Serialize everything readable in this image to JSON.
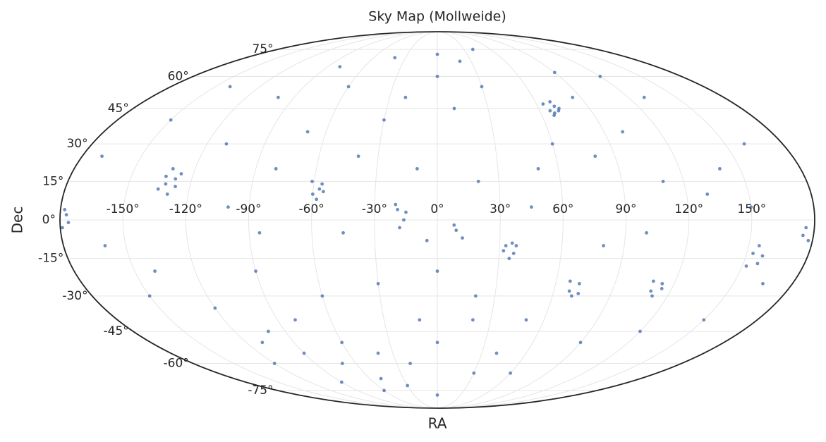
{
  "chart_data": {
    "type": "scatter",
    "projection": "mollweide",
    "title": "Sky Map (Mollweide)",
    "x_label": "RA",
    "y_label": "Dec",
    "color": "#4c72b0",
    "grid": true,
    "xlim": [
      -180,
      180
    ],
    "ylim": [
      -90,
      90
    ],
    "xticks": [
      {
        "value": -150,
        "label": "-150°"
      },
      {
        "value": -120,
        "label": "-120°"
      },
      {
        "value": -90,
        "label": "-90°"
      },
      {
        "value": -60,
        "label": "-60°"
      },
      {
        "value": -30,
        "label": "-30°"
      },
      {
        "value": 0,
        "label": "0°"
      },
      {
        "value": 30,
        "label": "30°"
      },
      {
        "value": 60,
        "label": "60°"
      },
      {
        "value": 90,
        "label": "90°"
      },
      {
        "value": 120,
        "label": "120°"
      },
      {
        "value": 150,
        "label": "150°"
      }
    ],
    "yticks": [
      {
        "value": -75,
        "label": "-75°"
      },
      {
        "value": -60,
        "label": "-60°"
      },
      {
        "value": -45,
        "label": "-45°"
      },
      {
        "value": -30,
        "label": "-30°"
      },
      {
        "value": -15,
        "label": "-15°"
      },
      {
        "value": 0,
        "label": "0°"
      },
      {
        "value": 15,
        "label": "15°"
      },
      {
        "value": 30,
        "label": "30°"
      },
      {
        "value": 45,
        "label": "45°"
      },
      {
        "value": 60,
        "label": "60°"
      },
      {
        "value": 75,
        "label": "75°"
      }
    ],
    "x": [
      66,
      70,
      68,
      72,
      64,
      69,
      67,
      71,
      -132,
      -128,
      -135,
      -126,
      -130,
      -133,
      -127,
      -131,
      -60,
      -56,
      -58,
      -55,
      -61,
      -57,
      -19,
      -16,
      -18,
      -20,
      -15,
      33,
      37,
      35,
      32,
      38,
      36,
      9,
      12,
      8,
      68,
      72,
      70,
      67,
      73,
      110,
      114,
      112,
      109,
      115,
      153,
      157,
      155,
      152,
      158,
      176,
      178,
      175,
      -177,
      -179,
      -176,
      -178,
      -150,
      -100,
      -80,
      -40,
      0,
      20,
      40,
      90,
      130,
      160,
      -170,
      -110,
      -70,
      -30,
      10,
      30,
      100,
      140,
      -140,
      -120,
      -100,
      -90,
      -70,
      -50,
      -30,
      -80,
      -110,
      -60,
      -40,
      -20,
      0,
      20,
      40,
      60,
      90,
      120,
      150,
      165,
      -160,
      -150,
      -90,
      -60,
      -30,
      0,
      20,
      50,
      80,
      100,
      130,
      150,
      -100,
      -80,
      -40,
      -10,
      20,
      50,
      80,
      110,
      -20,
      60,
      -120,
      -90,
      -60,
      0,
      30,
      -10,
      -140,
      0,
      -60,
      120,
      -5,
      45,
      -45,
      85,
      -85
    ],
    "y": [
      44,
      46,
      43,
      45,
      47,
      48,
      42,
      44,
      14,
      16,
      12,
      18,
      10,
      17,
      13,
      20,
      10,
      14,
      8,
      11,
      15,
      12,
      4,
      0,
      -3,
      6,
      3,
      -10,
      -13,
      -15,
      -12,
      -10,
      -9,
      -4,
      -7,
      -2,
      -28,
      -25,
      -30,
      -24,
      -29,
      -28,
      -25,
      -30,
      -24,
      -27,
      -13,
      -17,
      -10,
      -18,
      -14,
      -3,
      -8,
      -6,
      2,
      -3,
      -1,
      4,
      40,
      50,
      65,
      70,
      72,
      68,
      75,
      62,
      50,
      30,
      25,
      30,
      35,
      40,
      45,
      55,
      35,
      20,
      -20,
      -35,
      -45,
      -55,
      -60,
      -68,
      -72,
      -40,
      -50,
      -50,
      -55,
      -60,
      -50,
      -40,
      -55,
      -65,
      -50,
      -45,
      -40,
      -25,
      -10,
      -30,
      -20,
      -30,
      -25,
      -20,
      -30,
      -40,
      -10,
      -5,
      10,
      5,
      5,
      20,
      25,
      20,
      15,
      20,
      25,
      15,
      50,
      30,
      -60,
      -70,
      -75,
      -78,
      -65,
      -40,
      55,
      60,
      55,
      60,
      -8,
      5,
      -5,
      50,
      -5
    ]
  }
}
